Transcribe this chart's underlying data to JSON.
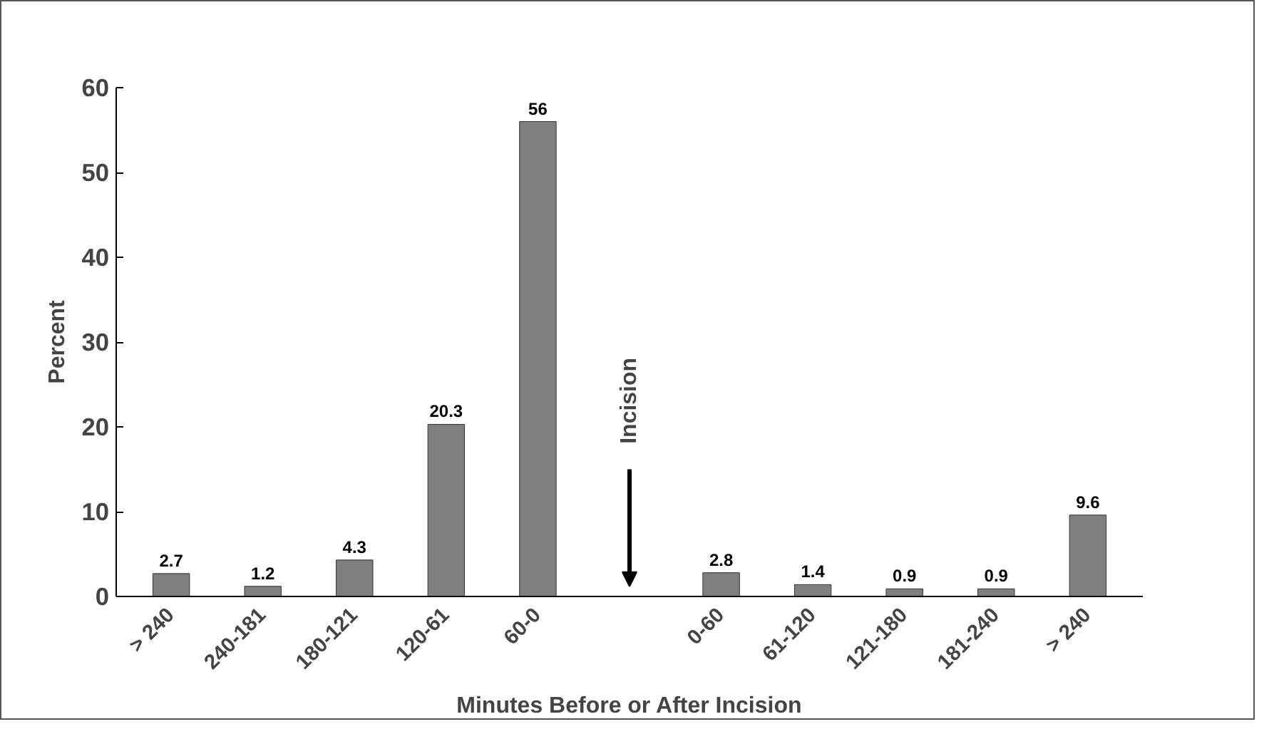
{
  "chart_data": {
    "type": "bar",
    "xlabel": "Minutes Before or After Incision",
    "ylabel": "Percent",
    "categories": [
      "> 240",
      "240-181",
      "180-121",
      "120-61",
      "60-0",
      null,
      "0-60",
      "61-120",
      "121-180",
      "181-240",
      "> 240"
    ],
    "values": [
      2.7,
      1.2,
      4.3,
      20.3,
      56,
      null,
      2.8,
      1.4,
      0.9,
      0.9,
      9.6
    ],
    "color": "#7f7f7f",
    "ylim": [
      0,
      60
    ],
    "yticks": [
      0,
      10,
      20,
      30,
      40,
      50,
      60
    ],
    "grid": false,
    "data_labels": true,
    "annotations": [
      "Incision"
    ]
  }
}
